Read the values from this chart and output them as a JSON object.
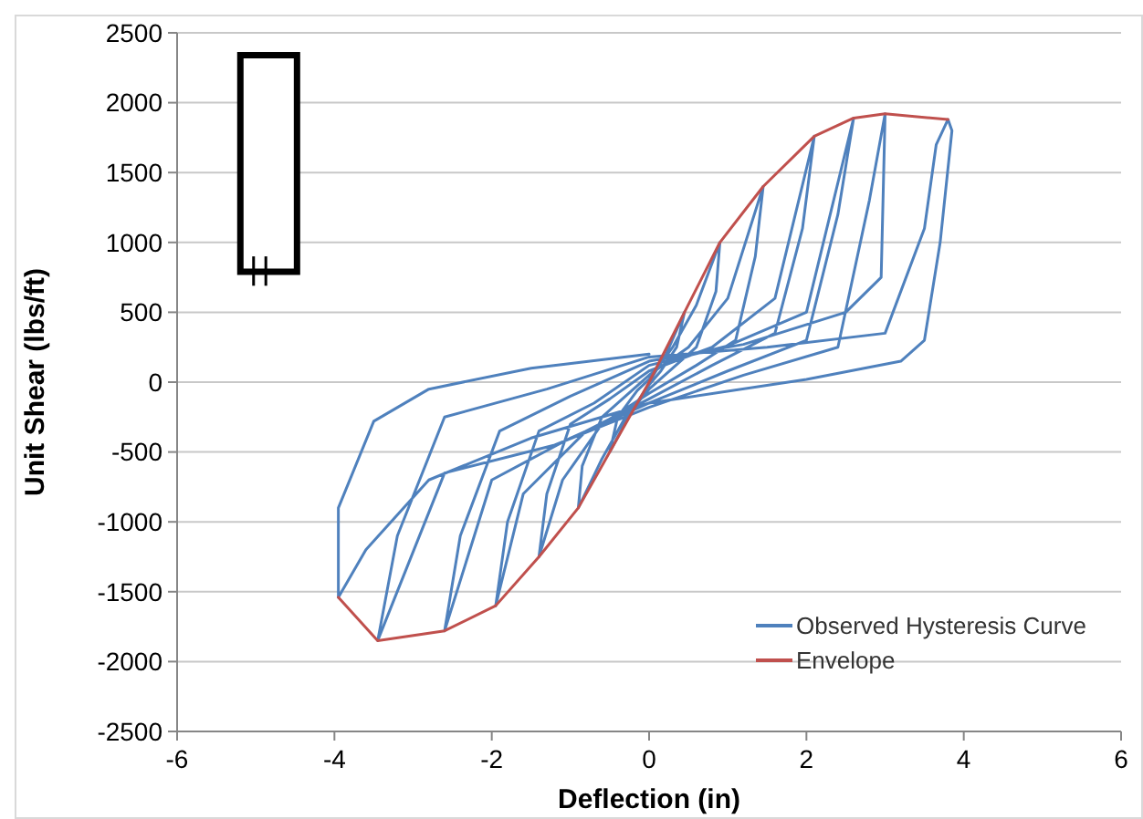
{
  "chart_data": {
    "type": "line",
    "xlabel": "Deflection (in)",
    "ylabel": "Unit Shear (lbs/ft)",
    "xlim": [
      -6,
      6
    ],
    "xticks": [
      -6,
      -4,
      -2,
      0,
      2,
      4,
      6
    ],
    "ylim": [
      -2500,
      2500
    ],
    "yticks": [
      -2500,
      -2000,
      -1500,
      -1000,
      -500,
      0,
      500,
      1000,
      1500,
      2000,
      2500
    ],
    "grid": "y",
    "legend": "bottom right",
    "marker": "none",
    "line_style": "solid",
    "series": [
      {
        "name": "Observed Hysteresis Curve",
        "color": "#4f81bd",
        "x": [
          0,
          0.2,
          0.45,
          0.35,
          0.15,
          0,
          -0.2,
          -0.5,
          -0.4,
          -0.15,
          0,
          0.3,
          0.6,
          0.9,
          0.85,
          0.6,
          0.3,
          0,
          -0.3,
          -0.6,
          -0.9,
          -0.85,
          -0.6,
          -0.3,
          0,
          0.5,
          1.0,
          1.45,
          1.35,
          1.1,
          0.6,
          0,
          -0.6,
          -1.1,
          -1.4,
          -1.3,
          -1.0,
          -0.5,
          0,
          0.8,
          1.6,
          2.1,
          1.95,
          1.6,
          0.8,
          0,
          -0.8,
          -1.6,
          -1.95,
          -1.8,
          -1.4,
          -0.7,
          0,
          1.0,
          2.0,
          2.6,
          2.4,
          2.0,
          1.0,
          0,
          -1.0,
          -2.0,
          -2.6,
          -2.4,
          -1.9,
          -1.0,
          0,
          1.2,
          2.5,
          2.95,
          3.0,
          2.8,
          2.4,
          1.2,
          0,
          -1.2,
          -2.6,
          -3.45,
          -3.2,
          -2.6,
          -1.3,
          0,
          1.5,
          3.0,
          3.5,
          3.65,
          3.8,
          3.85,
          3.7,
          3.5,
          3.2,
          2.0,
          0,
          -1.5,
          -2.8,
          -3.6,
          -3.95,
          -3.95,
          -3.5,
          -2.8,
          -1.5,
          0
        ],
        "values": [
          0,
          180,
          500,
          250,
          80,
          -20,
          -180,
          -500,
          -250,
          -60,
          20,
          250,
          550,
          1000,
          650,
          250,
          100,
          -50,
          -250,
          -550,
          -900,
          -600,
          -250,
          -100,
          50,
          250,
          600,
          1400,
          900,
          300,
          120,
          -80,
          -300,
          -700,
          -1250,
          -800,
          -300,
          -120,
          80,
          250,
          600,
          1760,
          1100,
          350,
          120,
          -120,
          -350,
          -800,
          -1600,
          -1000,
          -350,
          -150,
          120,
          260,
          500,
          1890,
          1200,
          300,
          80,
          -150,
          -400,
          -700,
          -1780,
          -1100,
          -350,
          -100,
          150,
          270,
          500,
          750,
          1920,
          1300,
          250,
          50,
          -180,
          -450,
          -650,
          -1850,
          -1100,
          -250,
          -50,
          180,
          250,
          350,
          1100,
          1700,
          1880,
          1800,
          1000,
          300,
          150,
          20,
          -150,
          -400,
          -700,
          -1200,
          -1540,
          -900,
          -280,
          -50,
          100,
          200
        ]
      },
      {
        "name": "Envelope",
        "color": "#c0504d",
        "x": [
          -3.95,
          -3.45,
          -2.6,
          -1.95,
          -1.4,
          -0.9,
          -0.5,
          0,
          0.45,
          0.9,
          1.45,
          2.1,
          2.6,
          3.0,
          3.8
        ],
        "values": [
          -1540,
          -1850,
          -1780,
          -1600,
          -1250,
          -900,
          -500,
          0,
          500,
          1000,
          1400,
          1760,
          1890,
          1920,
          1880
        ]
      }
    ]
  }
}
